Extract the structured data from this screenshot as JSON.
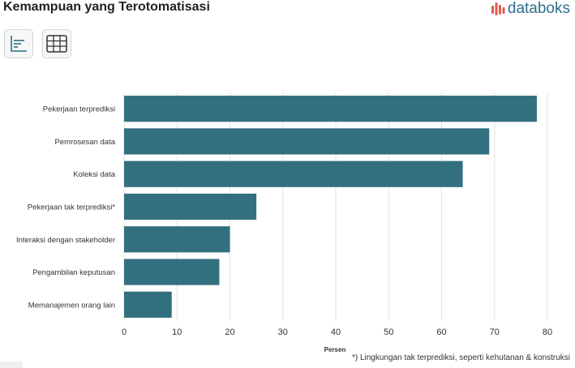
{
  "header": {
    "title": "Kemampuan yang Terotomatisasi",
    "brand": "databoks",
    "brand_color": "#2d6f87",
    "brand_accent": "#e05a4f"
  },
  "toolbar": {
    "chart_view_icon": "bar-chart-icon",
    "table_view_icon": "table-grid-icon"
  },
  "footnote": "*) Lingkungan tak terprediksi, seperti kehutanan & konstruksi",
  "chart_data": {
    "type": "bar",
    "orientation": "horizontal",
    "categories": [
      "Pekerjaan terprediksi",
      "Pemrosesan data",
      "Koleksi data",
      "Pekerjaan tak terprediksi*",
      "Interaksi dengan stakeholder",
      "Pengambilan keputusan",
      "Memanajemen orang lain"
    ],
    "values": [
      78,
      69,
      64,
      25,
      20,
      18,
      9
    ],
    "xlabel": "Persen",
    "ylabel": "",
    "xlim": [
      0,
      80
    ],
    "xticks": [
      0,
      10,
      20,
      30,
      40,
      50,
      60,
      70,
      80
    ],
    "grid": true,
    "bar_color": "#33707f",
    "legend": "none"
  }
}
